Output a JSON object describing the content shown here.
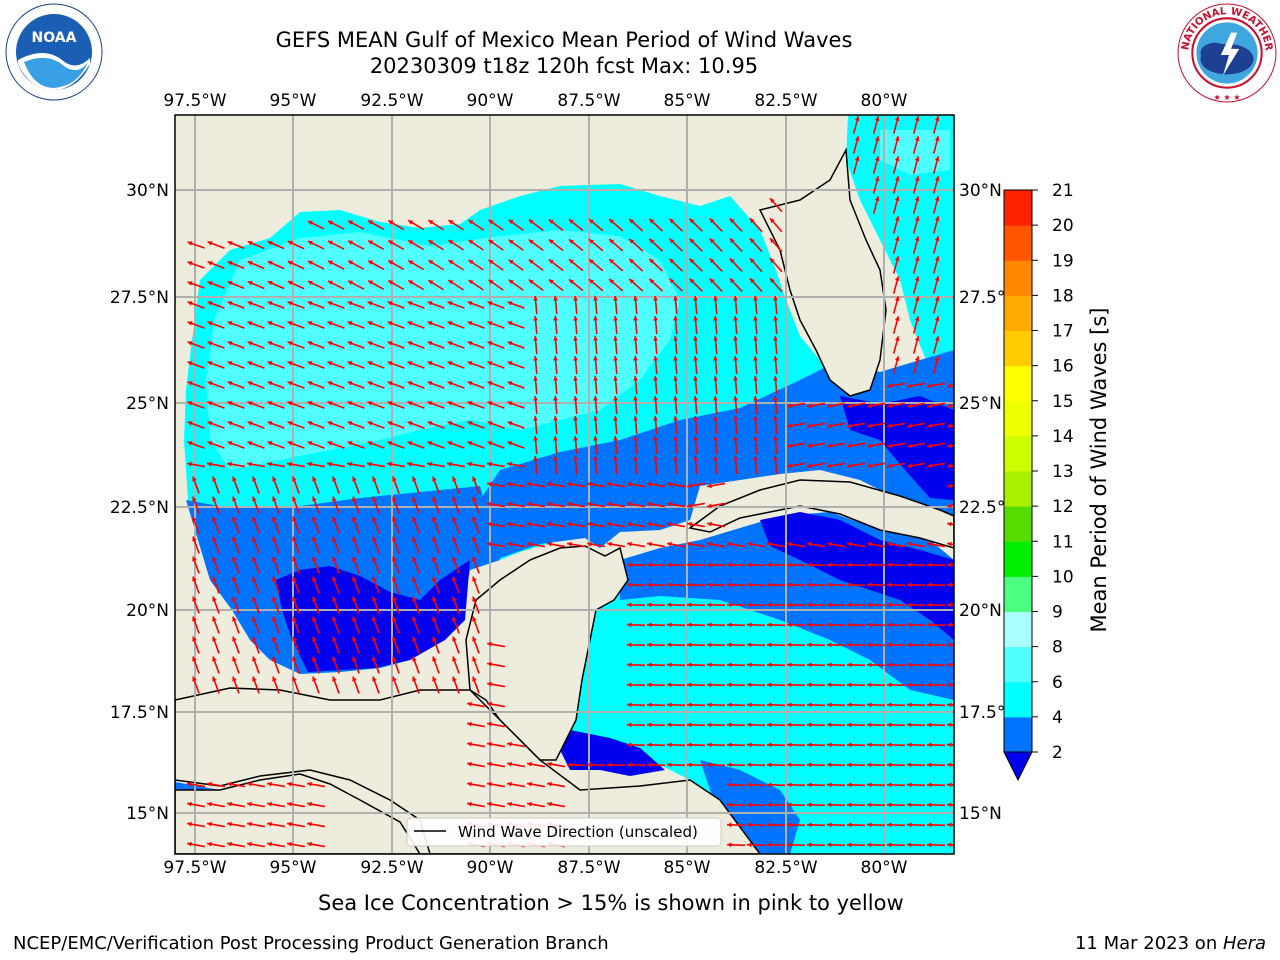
{
  "header": {
    "title_line1": "GEFS MEAN Gulf of Mexico Mean Period of Wind Waves",
    "title_line2": "20230309 t18z 120h fcst   Max: 10.95"
  },
  "logos": {
    "left": "NOAA",
    "left_ring_text": "NATIONAL OCEANIC AND ATMOSPHERIC ADMINISTRATION · U.S. DEPARTMENT OF COMMERCE",
    "right_ring_text": "NATIONAL WEATHER SERVICE"
  },
  "map": {
    "lon_ticks": [
      "97.5°W",
      "95°W",
      "92.5°W",
      "90°W",
      "87.5°W",
      "85°W",
      "82.5°W",
      "80°W"
    ],
    "lat_ticks_left": [
      "30°N",
      "27.5°N",
      "25°N",
      "22.5°N",
      "20°N",
      "17.5°N",
      "15°N"
    ],
    "lat_ticks_right": [
      "30°N",
      "27.5°N",
      "25°N",
      "22.5°N",
      "20°N",
      "17.5°N",
      "15°N"
    ],
    "legend_label": "Wind Wave Direction (unscaled)",
    "colors": {
      "land": "#eeecdc",
      "arrow": "#ff0000",
      "grid": "#b0b0b0"
    }
  },
  "colorbar": {
    "label": "Mean Period of Wind Waves [s]",
    "ticks": [
      "2",
      "4",
      "6",
      "8",
      "9",
      "10",
      "11",
      "12",
      "13",
      "14",
      "15",
      "16",
      "17",
      "18",
      "19",
      "20",
      "21"
    ],
    "colors": [
      "#0000ee",
      "#0073ff",
      "#00ffff",
      "#50ffff",
      "#aaffff",
      "#4cff7e",
      "#00ee00",
      "#55dd00",
      "#aaee00",
      "#ccff00",
      "#eeff00",
      "#ffff00",
      "#ffcc00",
      "#ffaa00",
      "#ff8800",
      "#ff5500",
      "#ff2200",
      "#ff0000"
    ]
  },
  "caption": "Sea Ice Concentration > 15% is shown in pink to yellow",
  "footer": {
    "left": "NCEP/EMC/Verification Post Processing Product Generation Branch",
    "right_date": "11 Mar 2023 on ",
    "right_host": "Hera"
  }
}
